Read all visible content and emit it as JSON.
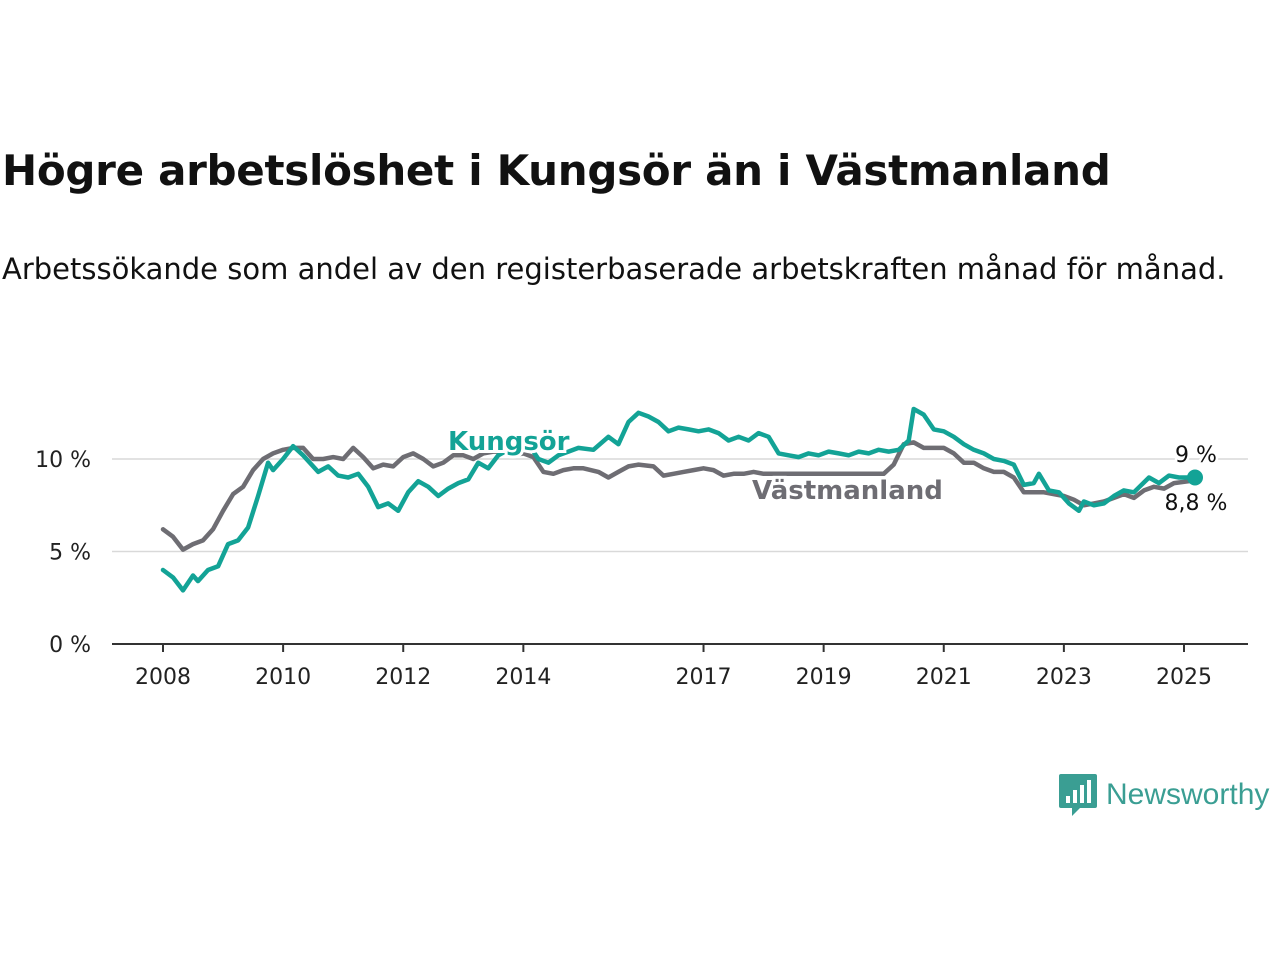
{
  "header": {
    "title": "Högre arbetslöshet i Kungsör än i Västmanland",
    "subtitle": "Arbetssökande som andel av den registerbaserade arbetskraften månad för månad."
  },
  "brand": {
    "name": "Newsworthy",
    "icon": "bar-chart-speech-bubble-icon",
    "color": "#3a9e93"
  },
  "colors": {
    "kungsor": "#13a396",
    "vastmanland": "#6e6d73",
    "grid": "#d9d9d9",
    "axis": "#333333"
  },
  "chart_data": {
    "type": "line",
    "title": "Högre arbetslöshet i Kungsör än i Västmanland",
    "x_ticks": [
      "2008",
      "2010",
      "2012",
      "2014",
      "2017",
      "2019",
      "2021",
      "2023",
      "2025"
    ],
    "x_range": [
      "2008-01",
      "2025-02"
    ],
    "y_ticks": [
      "0 %",
      "5 %",
      "10 %"
    ],
    "ylim": [
      0,
      10.9
    ],
    "grid": true,
    "series": [
      {
        "name": "Kungsör",
        "label": "Kungsör",
        "end_label": "9 %",
        "points": [
          [
            "2008-01",
            4.0
          ],
          [
            "2008-03",
            3.6
          ],
          [
            "2008-05",
            2.9
          ],
          [
            "2008-07",
            3.7
          ],
          [
            "2008-08",
            3.4
          ],
          [
            "2008-10",
            4.0
          ],
          [
            "2008-12",
            4.2
          ],
          [
            "2009-02",
            5.4
          ],
          [
            "2009-04",
            5.6
          ],
          [
            "2009-06",
            6.3
          ],
          [
            "2009-08",
            8.0
          ],
          [
            "2009-10",
            9.8
          ],
          [
            "2009-11",
            9.4
          ],
          [
            "2010-01",
            10.0
          ],
          [
            "2010-03",
            10.7
          ],
          [
            "2010-05",
            10.2
          ],
          [
            "2010-08",
            9.3
          ],
          [
            "2010-10",
            9.6
          ],
          [
            "2010-12",
            9.1
          ],
          [
            "2011-02",
            9.0
          ],
          [
            "2011-04",
            9.2
          ],
          [
            "2011-06",
            8.5
          ],
          [
            "2011-08",
            7.4
          ],
          [
            "2011-10",
            7.6
          ],
          [
            "2011-12",
            7.2
          ],
          [
            "2012-02",
            8.2
          ],
          [
            "2012-04",
            8.8
          ],
          [
            "2012-06",
            8.5
          ],
          [
            "2012-08",
            8.0
          ],
          [
            "2012-10",
            8.4
          ],
          [
            "2012-12",
            8.7
          ],
          [
            "2013-02",
            8.9
          ],
          [
            "2013-04",
            9.8
          ],
          [
            "2013-06",
            9.5
          ],
          [
            "2013-08",
            10.2
          ],
          [
            "2013-10",
            10.5
          ],
          [
            "2013-12",
            10.3
          ],
          [
            "2014-02",
            10.8
          ],
          [
            "2014-04",
            10.0
          ],
          [
            "2014-06",
            9.8
          ],
          [
            "2014-08",
            10.2
          ],
          [
            "2014-10",
            10.4
          ],
          [
            "2014-12",
            10.6
          ],
          [
            "2015-03",
            10.5
          ],
          [
            "2015-06",
            11.2
          ],
          [
            "2015-08",
            10.8
          ],
          [
            "2015-10",
            12.0
          ],
          [
            "2015-12",
            12.5
          ],
          [
            "2016-02",
            12.3
          ],
          [
            "2016-04",
            12.0
          ],
          [
            "2016-06",
            11.5
          ],
          [
            "2016-08",
            11.7
          ],
          [
            "2016-10",
            11.6
          ],
          [
            "2016-12",
            11.5
          ],
          [
            "2017-02",
            11.6
          ],
          [
            "2017-04",
            11.4
          ],
          [
            "2017-06",
            11.0
          ],
          [
            "2017-08",
            11.2
          ],
          [
            "2017-10",
            11.0
          ],
          [
            "2017-12",
            11.4
          ],
          [
            "2018-02",
            11.2
          ],
          [
            "2018-04",
            10.3
          ],
          [
            "2018-06",
            10.2
          ],
          [
            "2018-08",
            10.1
          ],
          [
            "2018-10",
            10.3
          ],
          [
            "2018-12",
            10.2
          ],
          [
            "2019-02",
            10.4
          ],
          [
            "2019-04",
            10.3
          ],
          [
            "2019-06",
            10.2
          ],
          [
            "2019-08",
            10.4
          ],
          [
            "2019-10",
            10.3
          ],
          [
            "2019-12",
            10.5
          ],
          [
            "2020-02",
            10.4
          ],
          [
            "2020-04",
            10.5
          ],
          [
            "2020-06",
            11.0
          ],
          [
            "2020-07",
            12.7
          ],
          [
            "2020-09",
            12.4
          ],
          [
            "2020-11",
            11.6
          ],
          [
            "2021-01",
            11.5
          ],
          [
            "2021-03",
            11.2
          ],
          [
            "2021-05",
            10.8
          ],
          [
            "2021-07",
            10.5
          ],
          [
            "2021-09",
            10.3
          ],
          [
            "2021-11",
            10.0
          ],
          [
            "2022-01",
            9.9
          ],
          [
            "2022-03",
            9.7
          ],
          [
            "2022-05",
            8.6
          ],
          [
            "2022-07",
            8.7
          ],
          [
            "2022-08",
            9.2
          ],
          [
            "2022-10",
            8.3
          ],
          [
            "2022-12",
            8.2
          ],
          [
            "2023-02",
            7.6
          ],
          [
            "2023-04",
            7.2
          ],
          [
            "2023-05",
            7.7
          ],
          [
            "2023-07",
            7.5
          ],
          [
            "2023-09",
            7.6
          ],
          [
            "2023-11",
            8.0
          ],
          [
            "2024-01",
            8.3
          ],
          [
            "2024-03",
            8.2
          ],
          [
            "2024-06",
            9.0
          ],
          [
            "2024-08",
            8.7
          ],
          [
            "2024-10",
            9.1
          ],
          [
            "2024-12",
            9.0
          ],
          [
            "2025-02",
            9.0
          ]
        ]
      },
      {
        "name": "Västmanland",
        "label": "Västmanland",
        "end_label": "8,8 %",
        "points": [
          [
            "2008-01",
            6.2
          ],
          [
            "2008-03",
            5.8
          ],
          [
            "2008-05",
            5.1
          ],
          [
            "2008-07",
            5.4
          ],
          [
            "2008-09",
            5.6
          ],
          [
            "2008-11",
            6.2
          ],
          [
            "2009-01",
            7.2
          ],
          [
            "2009-03",
            8.1
          ],
          [
            "2009-05",
            8.5
          ],
          [
            "2009-07",
            9.4
          ],
          [
            "2009-09",
            10.0
          ],
          [
            "2009-11",
            10.3
          ],
          [
            "2010-01",
            10.5
          ],
          [
            "2010-03",
            10.6
          ],
          [
            "2010-05",
            10.6
          ],
          [
            "2010-07",
            10.0
          ],
          [
            "2010-09",
            10.0
          ],
          [
            "2010-11",
            10.1
          ],
          [
            "2011-01",
            10.0
          ],
          [
            "2011-03",
            10.6
          ],
          [
            "2011-05",
            10.1
          ],
          [
            "2011-07",
            9.5
          ],
          [
            "2011-09",
            9.7
          ],
          [
            "2011-11",
            9.6
          ],
          [
            "2012-01",
            10.1
          ],
          [
            "2012-03",
            10.3
          ],
          [
            "2012-05",
            10.0
          ],
          [
            "2012-07",
            9.6
          ],
          [
            "2012-09",
            9.8
          ],
          [
            "2012-11",
            10.2
          ],
          [
            "2013-01",
            10.2
          ],
          [
            "2013-03",
            10.0
          ],
          [
            "2013-05",
            10.3
          ],
          [
            "2013-07",
            10.4
          ],
          [
            "2013-09",
            10.4
          ],
          [
            "2013-11",
            10.2
          ],
          [
            "2014-01",
            10.3
          ],
          [
            "2014-03",
            10.1
          ],
          [
            "2014-05",
            9.3
          ],
          [
            "2014-07",
            9.2
          ],
          [
            "2014-09",
            9.4
          ],
          [
            "2014-11",
            9.5
          ],
          [
            "2015-01",
            9.5
          ],
          [
            "2015-04",
            9.3
          ],
          [
            "2015-06",
            9.0
          ],
          [
            "2015-08",
            9.3
          ],
          [
            "2015-10",
            9.6
          ],
          [
            "2015-12",
            9.7
          ],
          [
            "2016-03",
            9.6
          ],
          [
            "2016-05",
            9.1
          ],
          [
            "2016-07",
            9.2
          ],
          [
            "2016-09",
            9.3
          ],
          [
            "2016-11",
            9.4
          ],
          [
            "2017-01",
            9.5
          ],
          [
            "2017-03",
            9.4
          ],
          [
            "2017-05",
            9.1
          ],
          [
            "2017-07",
            9.2
          ],
          [
            "2017-09",
            9.2
          ],
          [
            "2017-11",
            9.3
          ],
          [
            "2018-01",
            9.2
          ],
          [
            "2020-01",
            9.2
          ],
          [
            "2020-03",
            9.7
          ],
          [
            "2020-05",
            10.8
          ],
          [
            "2020-07",
            10.9
          ],
          [
            "2020-09",
            10.6
          ],
          [
            "2020-11",
            10.6
          ],
          [
            "2021-01",
            10.6
          ],
          [
            "2021-03",
            10.3
          ],
          [
            "2021-05",
            9.8
          ],
          [
            "2021-07",
            9.8
          ],
          [
            "2021-09",
            9.5
          ],
          [
            "2021-11",
            9.3
          ],
          [
            "2022-01",
            9.3
          ],
          [
            "2022-03",
            9.0
          ],
          [
            "2022-05",
            8.2
          ],
          [
            "2022-07",
            8.2
          ],
          [
            "2022-09",
            8.2
          ],
          [
            "2022-11",
            8.1
          ],
          [
            "2023-01",
            8.0
          ],
          [
            "2023-03",
            7.8
          ],
          [
            "2023-05",
            7.5
          ],
          [
            "2023-07",
            7.6
          ],
          [
            "2023-09",
            7.7
          ],
          [
            "2023-11",
            7.9
          ],
          [
            "2024-01",
            8.1
          ],
          [
            "2024-03",
            7.9
          ],
          [
            "2024-05",
            8.3
          ],
          [
            "2024-07",
            8.5
          ],
          [
            "2024-09",
            8.4
          ],
          [
            "2024-11",
            8.7
          ],
          [
            "2025-02",
            8.8
          ]
        ]
      }
    ]
  }
}
